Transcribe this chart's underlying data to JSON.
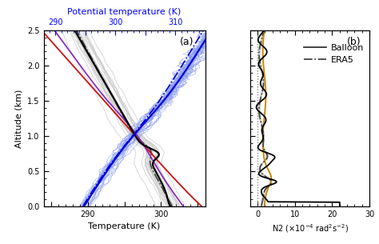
{
  "panel_a": {
    "title_label": "(a)",
    "xlabel": "Temperature (K)",
    "ylabel": "Altitude (km)",
    "top_xlabel": "Potential temperature (K)",
    "xlim_temp": [
      284,
      306
    ],
    "xlim_pot": [
      288,
      314
    ],
    "ylim": [
      0,
      2.5
    ],
    "yticks": [
      0.0,
      0.5,
      1.0,
      1.5,
      2.0,
      2.5
    ]
  },
  "panel_b": {
    "title_label": "(b)",
    "xlim": [
      -2,
      30
    ],
    "ylim": [
      0,
      2.5
    ],
    "xticks": [
      0,
      10,
      20,
      30
    ]
  },
  "colors": {
    "black": "#000000",
    "dark_gray": "#444444",
    "red": "#cc1111",
    "blue": "#0000cc",
    "purple": "#8822bb",
    "light_blue": "#5577ee",
    "orange": "#cc8800",
    "light_gray": "#cccccc",
    "medium_gray": "#999999",
    "dotted_gray": "#888888"
  }
}
